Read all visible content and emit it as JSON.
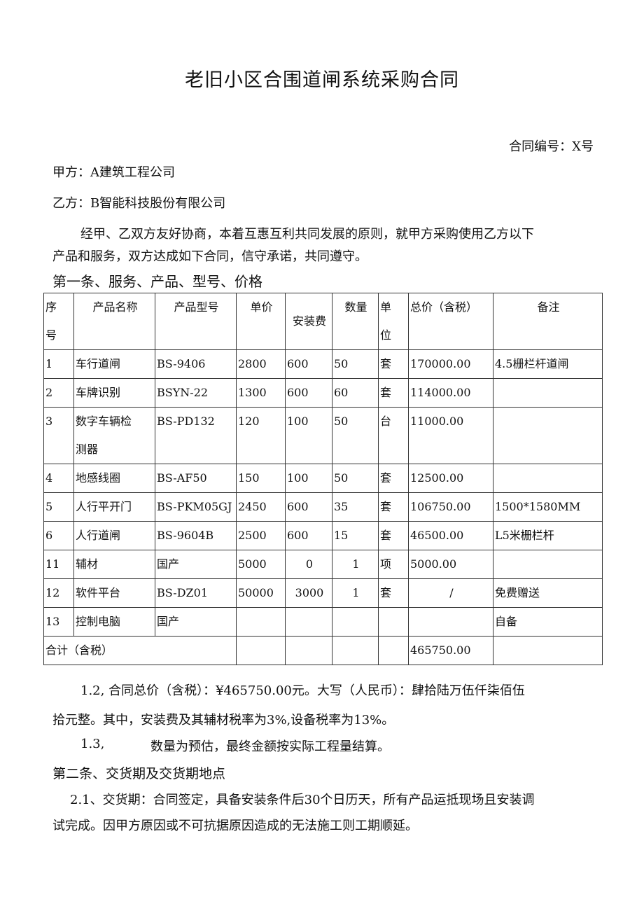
{
  "title": "老旧小区合围道闸系统采购合同",
  "contract_no": "合同编号：X号",
  "party_a": "甲方：A建筑工程公司",
  "party_b": "乙方：B智能科技股份有限公司",
  "intro_1": "经甲、乙双方友好协商，本着互惠互利共同发展的原则，就甲方采购使用乙方以下",
  "intro_2": "产品和服务，双方达成如下合同，信守承诺，共同遵守。",
  "section1": "第一条、服务、产品、型号、价格",
  "table": {
    "headers": {
      "seq_1": "序",
      "seq_2": "号",
      "name": "产品名称",
      "model": "产品型号",
      "price": "单价",
      "install": "安装费",
      "qty": "数量",
      "unit_1": "单",
      "unit_2": "位",
      "total": "总价（含税）",
      "note": "备注"
    },
    "rows": [
      [
        "1",
        "车行道闸",
        "BS-9406",
        "2800",
        "600",
        "50",
        "套",
        "170000.00",
        "4.5栅栏杆道闸"
      ],
      [
        "2",
        "车牌识别",
        "BSYN-22",
        "1300",
        "600",
        "60",
        "套",
        "114000.00",
        ""
      ],
      [
        "3",
        "数字车辆检",
        "BS-PD132",
        "120",
        "100",
        "50",
        "台",
        "11000.00",
        ""
      ],
      [
        "4",
        "地感线圈",
        "BS-AF50",
        "150",
        "100",
        "50",
        "套",
        "12500.00",
        ""
      ],
      [
        "5",
        "人行平开门",
        "BS-PKM05GJ",
        "2450",
        "600",
        "35",
        "套",
        "106750.00",
        "1500*1580MM"
      ],
      [
        "6",
        "人行道闸",
        "BS-9604B",
        "2500",
        "600",
        "15",
        "套",
        "46500.00",
        "L5米栅栏杆"
      ],
      [
        "11",
        "辅材",
        "国产",
        "5000",
        "0",
        "1",
        "项",
        "5000.00",
        ""
      ],
      [
        "12",
        "软件平台",
        "BS-DZ01",
        "50000",
        "3000",
        "1",
        "套",
        "/",
        "免费赠送"
      ],
      [
        "13",
        "控制电脑",
        "国产",
        "",
        "",
        "",
        "",
        "",
        "自备"
      ]
    ],
    "row3_name_2": "测器",
    "sum_label": "合计（含税）",
    "sum_total": "465750.00"
  },
  "clause_1_2a": "1.2, 合同总价（含税）：¥465750.00元。大写（人民币）：肆拾陆万伍仟柒佰伍",
  "clause_1_2b": "拾元整。其中，安装费及其辅材税率为3%,设备税率为13%。",
  "clause_1_3_num": "1.3,",
  "clause_1_3": "数量为预估，最终金额按实际工程量结算。",
  "section2": "第二条、交货期及交货期地点",
  "clause_2_1a": "2.1、交货期：合同签定，具备安装条件后30个日历天，所有产品运抵现场且安装调",
  "clause_2_1b": "试完成。因甲方原因或不可抗据原因造成的无法施工则工期顺延。"
}
